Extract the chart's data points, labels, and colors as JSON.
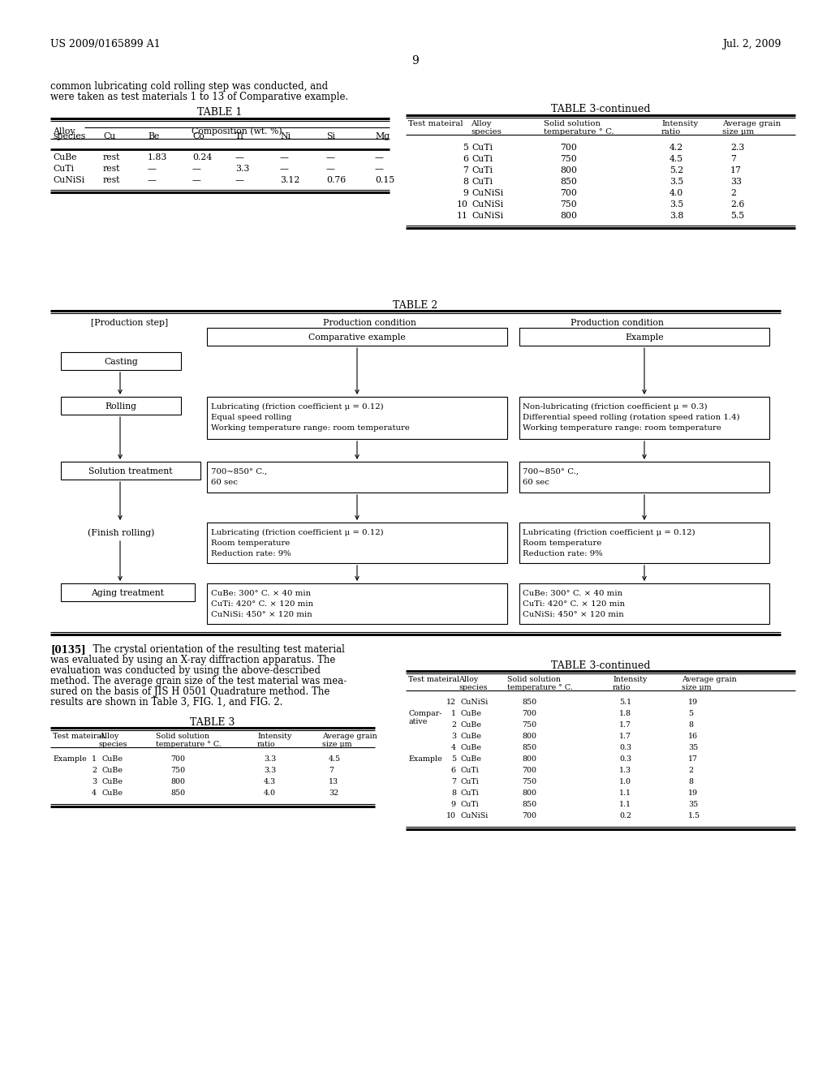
{
  "bg_color": "#ffffff",
  "header_left": "US 2009/0165899 A1",
  "header_right": "Jul. 2, 2009",
  "page_number": "9",
  "intro_line1": "common lubricating cold rolling step was conducted, and",
  "intro_line2": "were taken as test materials 1 to 13 of Comparative example.",
  "table1_title": "TABLE 1",
  "table1_col_headers": [
    "species",
    "Cu",
    "Be",
    "Co",
    "Ti",
    "Ni",
    "Si",
    "Mg"
  ],
  "table1_rows": [
    [
      "CuBe",
      "rest",
      "1.83",
      "0.24",
      "—",
      "—",
      "—",
      "—"
    ],
    [
      "CuTi",
      "rest",
      "—",
      "—",
      "3.3",
      "—",
      "—",
      "—"
    ],
    [
      "CuNiSi",
      "rest",
      "—",
      "—",
      "—",
      "3.12",
      "0.76",
      "0.15"
    ]
  ],
  "table3cont_title": "TABLE 3-continued",
  "table3cont_rows_top": [
    [
      "5",
      "CuTi",
      "700",
      "4.2",
      "2.3"
    ],
    [
      "6",
      "CuTi",
      "750",
      "4.5",
      "7"
    ],
    [
      "7",
      "CuTi",
      "800",
      "5.2",
      "17"
    ],
    [
      "8",
      "CuTi",
      "850",
      "3.5",
      "33"
    ],
    [
      "9",
      "CuNiSi",
      "700",
      "4.0",
      "2"
    ],
    [
      "10",
      "CuNiSi",
      "750",
      "3.5",
      "2.6"
    ],
    [
      "11",
      "CuNiSi",
      "800",
      "3.8",
      "5.5"
    ]
  ],
  "table2_title": "TABLE 2",
  "table2_col1": "[Production step]",
  "table2_col2": "Production condition",
  "table2_col3": "Production condition",
  "table2_sub2": "Comparative example",
  "table2_sub3": "Example",
  "paragraph135_bold": "[0135]",
  "paragraph135_rest": "   The crystal orientation of the resulting test material\nwas evaluated by using an X-ray diffraction apparatus. The\nevaluation was conducted by using the above-described\nmethod. The average grain size of the test material was mea-\nsured on the basis of JIS H 0501 Quadrature method. The\nresults are shown in Table 3, FIG. 1, and FIG. 2.",
  "table3_title": "TABLE 3",
  "table3_rows": [
    [
      "1",
      "CuBe",
      "700",
      "3.3",
      "4.5"
    ],
    [
      "2",
      "CuBe",
      "750",
      "3.3",
      "7"
    ],
    [
      "3",
      "CuBe",
      "800",
      "4.3",
      "13"
    ],
    [
      "4",
      "CuBe",
      "850",
      "4.0",
      "32"
    ]
  ],
  "table3cont2_title": "TABLE 3-continued",
  "table3cont2_row0": [
    "12",
    "CuNiSi",
    "850",
    "5.1",
    "19"
  ],
  "table3cont2_comp_rows": [
    [
      "1",
      "CuBe",
      "700",
      "1.8",
      "5"
    ],
    [
      "2",
      "CuBe",
      "750",
      "1.7",
      "8"
    ],
    [
      "3",
      "CuBe",
      "800",
      "1.7",
      "16"
    ],
    [
      "4",
      "CuBe",
      "850",
      "0.3",
      "35"
    ]
  ],
  "table3cont2_ex_rows": [
    [
      "5",
      "CuBe",
      "800",
      "0.3",
      "17"
    ],
    [
      "6",
      "CuTi",
      "700",
      "1.3",
      "2"
    ],
    [
      "7",
      "CuTi",
      "750",
      "1.0",
      "8"
    ],
    [
      "8",
      "CuTi",
      "800",
      "1.1",
      "19"
    ],
    [
      "9",
      "CuTi",
      "850",
      "1.1",
      "35"
    ],
    [
      "10",
      "CuNiSi",
      "700",
      "0.2",
      "1.5"
    ]
  ]
}
